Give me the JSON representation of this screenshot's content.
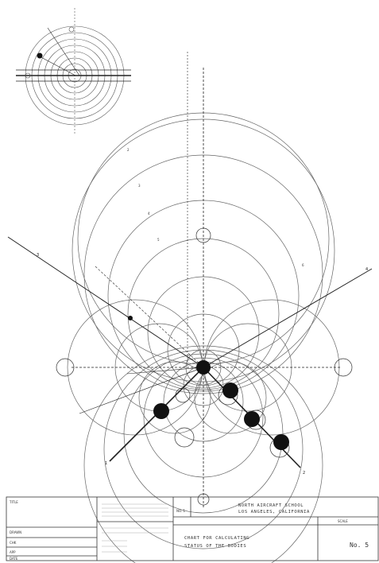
{
  "title_block": {
    "school_line1": "NORTH AIRCRAFT SCHOOL",
    "school_line2": "LOS ANGELES, CALIFORNIA",
    "drawing_title_line1": "CHART FOR CALCULATING",
    "drawing_title_line2": "STATUS OF THE BODIES",
    "drawing_no": "No. 5",
    "left_header": "TITLE",
    "left_label": "DRAWN",
    "row_labels": [
      "CHK",
      "APP",
      "DATE"
    ],
    "sheet_label": "NO. 1",
    "scale_label": "SCALE"
  },
  "diagram": {
    "axis_labels": [
      "1",
      "2",
      "3",
      "4"
    ],
    "ring_numbers": [
      "2",
      "3",
      "4",
      "5",
      "6"
    ]
  },
  "colors": {
    "ink": "#222222",
    "paper": "#ffffff"
  }
}
